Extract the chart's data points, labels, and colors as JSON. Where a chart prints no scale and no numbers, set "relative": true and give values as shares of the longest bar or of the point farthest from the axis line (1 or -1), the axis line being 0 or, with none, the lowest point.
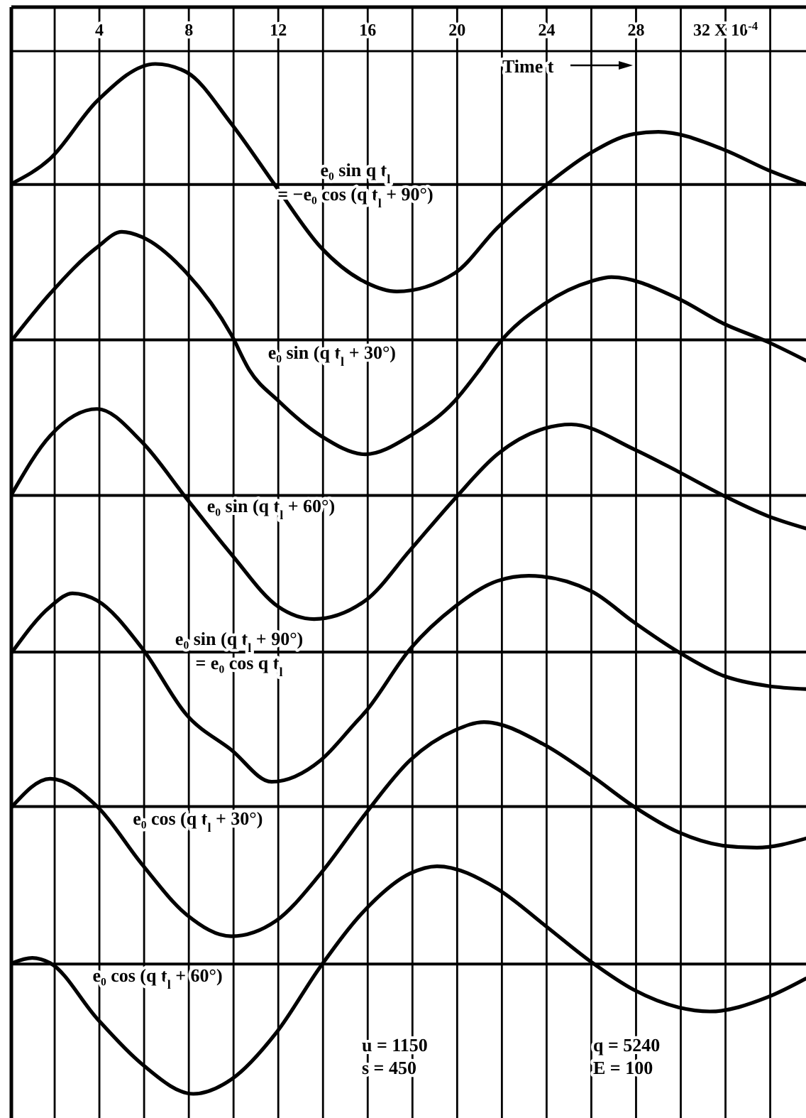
{
  "chart_data": {
    "type": "line",
    "relative": true,
    "xlabel": "Time t",
    "xlim": [
      0,
      35.6
    ],
    "xticks": [
      {
        "value": 2,
        "label": null
      },
      4,
      {
        "value": 6,
        "label": null
      },
      8,
      {
        "value": 10,
        "label": null
      },
      12,
      {
        "value": 14,
        "label": null
      },
      16,
      {
        "value": 18,
        "label": null
      },
      20,
      {
        "value": 22,
        "label": null
      },
      24,
      {
        "value": 26,
        "label": null
      },
      28,
      {
        "value": 30,
        "label": null
      },
      {
        "value": 32,
        "label": "32 X 10$^{-4}$"
      },
      {
        "value": 34,
        "label": null
      }
    ],
    "grid": "x",
    "line_style": "solid",
    "marker": "none",
    "series": [
      {
        "name": "e₀ sin q t$_{l}$\n= −e₀ cos (q t$_{l}$ + 90°)",
        "color": "#000000",
        "x": [
          0.1,
          1.8,
          3.9,
          6.5,
          7.9,
          9.9,
          11.9,
          13.9,
          15.9,
          17.3,
          19.9,
          21.8,
          23.9,
          26,
          27.9,
          29,
          31.9,
          33.9,
          35.6
        ],
        "values": [
          0.884,
          0.908,
          0.964,
          1.0,
          0.992,
          0.942,
          0.881,
          0.822,
          0.788,
          0.779,
          0.797,
          0.841,
          0.881,
          0.914,
          0.932,
          0.934,
          0.917,
          0.897,
          0.883
        ]
      },
      {
        "name": "e₀ sin (q t$_{l}$ + 30°)",
        "color": "#000000",
        "x": [
          0.1,
          1.8,
          3.9,
          5,
          5.9,
          7.9,
          9.9,
          10.7,
          12,
          13.9,
          15.9,
          17.9,
          19.9,
          21,
          21.8,
          23.9,
          26,
          26.9,
          29.9,
          31.9,
          33.9,
          35.6
        ],
        "values": [
          0.732,
          0.777,
          0.822,
          0.837,
          0.832,
          0.797,
          0.737,
          0.703,
          0.673,
          0.639,
          0.621,
          0.639,
          0.673,
          0.703,
          0.727,
          0.767,
          0.789,
          0.793,
          0.772,
          0.748,
          0.73,
          0.712
        ]
      },
      {
        "name": "e₀ sin (q t$_{l}$ + 60°)",
        "color": "#000000",
        "x": [
          0.1,
          1.8,
          3.9,
          5.9,
          7.9,
          9.9,
          12,
          13.6,
          15.9,
          17.9,
          19.9,
          21.8,
          23.9,
          25.1,
          27.9,
          29.9,
          31.9,
          33.9,
          35.6
        ],
        "values": [
          0.583,
          0.639,
          0.665,
          0.633,
          0.578,
          0.524,
          0.473,
          0.461,
          0.479,
          0.528,
          0.578,
          0.621,
          0.646,
          0.65,
          0.626,
          0.604,
          0.581,
          0.561,
          0.549
        ]
      },
      {
        "name": "e₀ sin (q t$_{l}$ + 90°)\n= e₀ cos q t$_{l}$",
        "color": "#000000",
        "x": [
          0.1,
          1.8,
          2.8,
          3.9,
          5.9,
          7.9,
          9.9,
          11.7,
          13.9,
          15.4,
          15.9,
          17.9,
          19.9,
          21.8,
          23.2,
          26,
          27.9,
          29.9,
          31.9,
          33.9,
          35.6
        ],
        "values": [
          0.429,
          0.473,
          0.486,
          0.479,
          0.433,
          0.368,
          0.334,
          0.303,
          0.324,
          0.359,
          0.371,
          0.432,
          0.473,
          0.498,
          0.503,
          0.488,
          0.458,
          0.429,
          0.406,
          0.396,
          0.393
        ]
      },
      {
        "name": "e₀ cos (q t$_{l}$ + 30°)",
        "color": "#000000",
        "x": [
          0.1,
          1.8,
          3.9,
          5.9,
          7.9,
          9.9,
          11.9,
          13.9,
          15.9,
          17.9,
          19.9,
          21.2,
          23.9,
          26,
          27.9,
          29.9,
          31.9,
          33.4,
          35.6
        ],
        "values": [
          0.279,
          0.306,
          0.279,
          0.223,
          0.174,
          0.153,
          0.168,
          0.214,
          0.272,
          0.324,
          0.353,
          0.361,
          0.339,
          0.309,
          0.279,
          0.254,
          0.241,
          0.239,
          0.248
        ]
      },
      {
        "name": "e₀ cos (q t$_{l}$ + 60°)",
        "color": "#000000",
        "x": [
          0.1,
          1,
          1.8,
          3.9,
          5.9,
          8.2,
          9.9,
          11.9,
          13.9,
          15.9,
          17.9,
          19.1,
          21.8,
          23.9,
          26,
          27.9,
          29.9,
          31.3,
          33.9,
          35.6
        ],
        "values": [
          0.127,
          0.132,
          0.127,
          0.073,
          0.029,
          0,
          0.014,
          0.059,
          0.124,
          0.179,
          0.214,
          0.221,
          0.199,
          0.164,
          0.128,
          0.101,
          0.084,
          0.08,
          0.094,
          0.112
        ]
      }
    ],
    "ref_lines": [
      {
        "axis": "y",
        "value": 0.883
      },
      {
        "axis": "y",
        "value": 0.732
      },
      {
        "axis": "y",
        "value": 0.581
      },
      {
        "axis": "y",
        "value": 0.429
      },
      {
        "axis": "y",
        "value": 0.279
      },
      {
        "axis": "y",
        "value": 0.126
      }
    ],
    "annotations": [
      "u = 1150",
      "s = 450",
      "q = 5240",
      "E = 100"
    ]
  }
}
